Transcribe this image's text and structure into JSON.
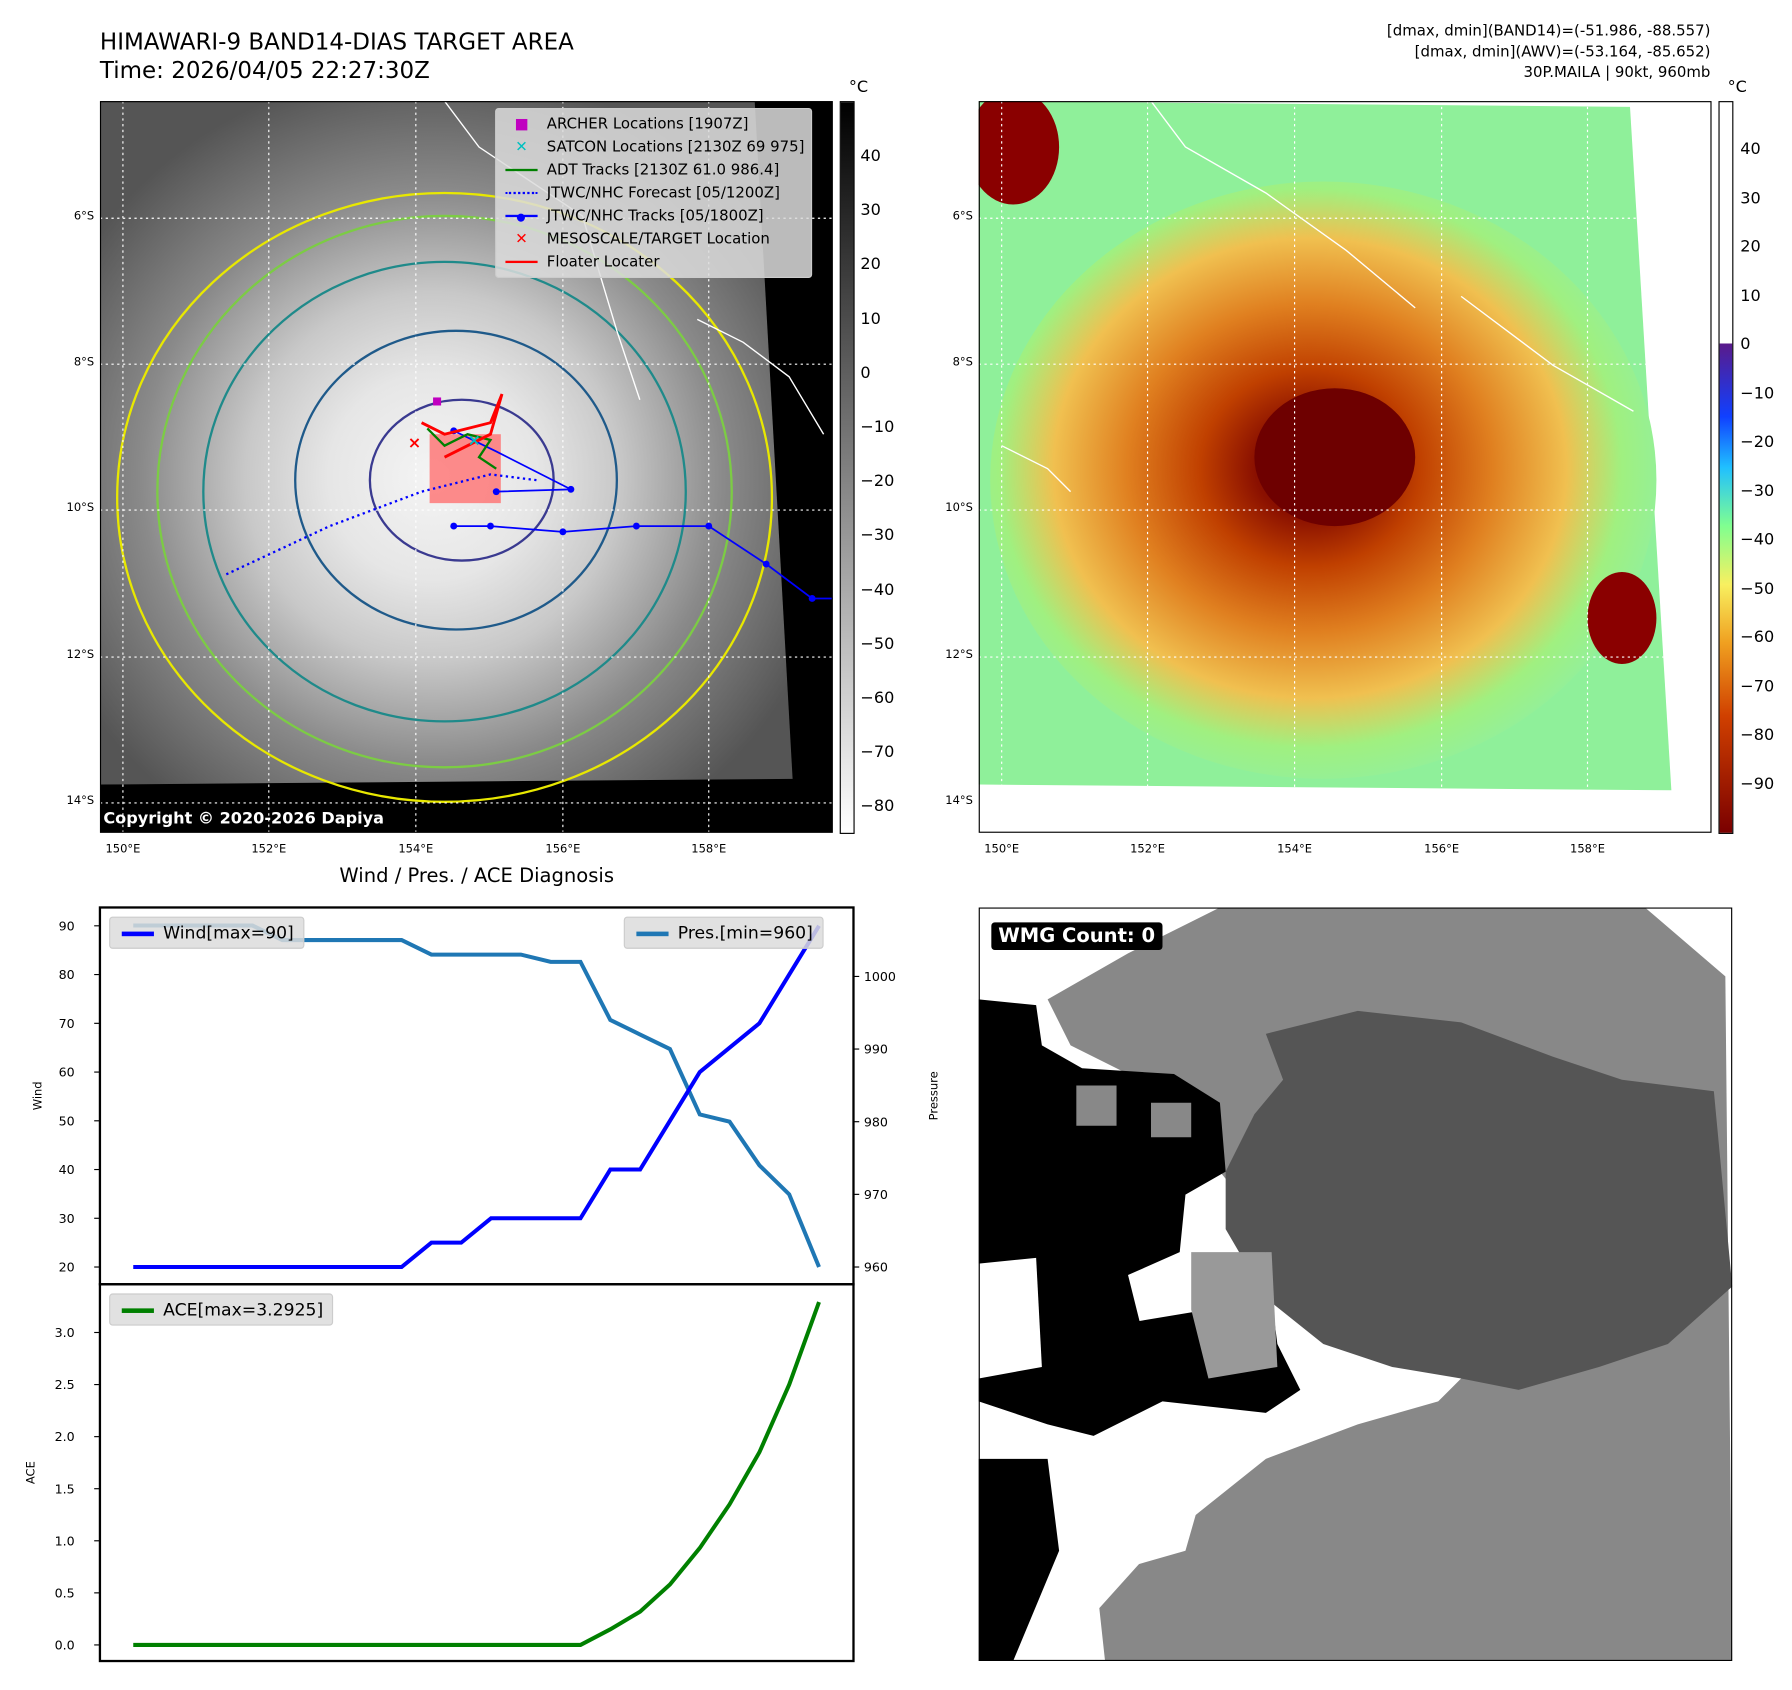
{
  "header": {
    "title": "HIMAWARI-9 BAND14-DIAS TARGET AREA",
    "time": "Time: 2026/04/05 22:27:30Z",
    "stats_band14": "[dmax, dmin](BAND14)=(-51.986, -88.557)",
    "stats_awv": "[dmax, dmin](AWV)=(-53.164, -85.652)",
    "storm_info": "30P.MAILA | 90kt, 960mb"
  },
  "map": {
    "lat_labels": [
      "6°S",
      "8°S",
      "10°S",
      "12°S",
      "14°S"
    ],
    "lon_labels": [
      "150°E",
      "152°E",
      "154°E",
      "156°E",
      "158°E"
    ],
    "copyright": "Copyright © 2020-2026 Dapiya",
    "unit": "°C",
    "left_colorbar_ticks": [
      "40",
      "30",
      "20",
      "10",
      "0",
      "−10",
      "−20",
      "−30",
      "−40",
      "−50",
      "−60",
      "−70",
      "−80"
    ],
    "right_colorbar_ticks": [
      "40",
      "30",
      "20",
      "10",
      "0",
      "−10",
      "−20",
      "−30",
      "−40",
      "−50",
      "−60",
      "−70",
      "−80",
      "−90"
    ],
    "legend": [
      {
        "label": "ARCHER Locations [1907Z]",
        "color": "#c000c0",
        "icon": "square-marker"
      },
      {
        "label": "SATCON Locations [2130Z 69 975]",
        "color": "#00c0c0",
        "icon": "x-marker"
      },
      {
        "label": "ADT Tracks [2130Z 61.0 986.4]",
        "color": "#008000",
        "icon": "solid-line"
      },
      {
        "label": "JTWC/NHC Forecast [05/1200Z]",
        "color": "#0000ff",
        "icon": "dotted-line"
      },
      {
        "label": "JTWC/NHC Tracks [05/1800Z]",
        "color": "#0000ff",
        "icon": "line-dot"
      },
      {
        "label": "MESOSCALE/TARGET Location",
        "color": "#ff0000",
        "icon": "x-marker"
      },
      {
        "label": "Floater Locater",
        "color": "#ff0000",
        "icon": "solid-line"
      }
    ]
  },
  "wmg": {
    "label": "WMG Count: 0"
  },
  "chart_data": [
    {
      "type": "line",
      "title": "Wind / Pres. / ACE Diagnosis",
      "ylabel": "Wind",
      "ylabel_right": "Pressure",
      "ylim": [
        18,
        93
      ],
      "ylim_right": [
        958,
        1008
      ],
      "yticks": [
        20,
        30,
        40,
        50,
        60,
        70,
        80,
        90
      ],
      "yticks_right": [
        960,
        970,
        980,
        990,
        1000
      ],
      "x": [
        0,
        1,
        2,
        3,
        4,
        5,
        6,
        7,
        8,
        9,
        10,
        11,
        12,
        13,
        14,
        15,
        16,
        17,
        18,
        19,
        20,
        21,
        22,
        23
      ],
      "series": [
        {
          "name": "Wind[max=90]",
          "color": "#0000ff",
          "axis": "left",
          "values": [
            20,
            20,
            20,
            20,
            20,
            20,
            20,
            20,
            20,
            20,
            25,
            25,
            30,
            30,
            30,
            30,
            40,
            40,
            50,
            60,
            65,
            70,
            80,
            90
          ]
        },
        {
          "name": "Pres.[min=960]",
          "color": "#1f77b4",
          "axis": "right",
          "values": [
            1007,
            1007,
            1007,
            1007,
            1007,
            1005,
            1005,
            1005,
            1005,
            1005,
            1003,
            1003,
            1003,
            1003,
            1002,
            1002,
            994,
            992,
            990,
            981,
            980,
            974,
            970,
            960
          ]
        }
      ]
    },
    {
      "type": "line",
      "ylabel": "ACE",
      "ylim": [
        -0.15,
        3.45
      ],
      "yticks": [
        "0.0",
        "0.5",
        "1.0",
        "1.5",
        "2.0",
        "2.5",
        "3.0"
      ],
      "x": [
        0,
        1,
        2,
        3,
        4,
        5,
        6,
        7,
        8,
        9,
        10,
        11,
        12,
        13,
        14,
        15,
        16,
        17,
        18,
        19,
        20,
        21,
        22,
        23
      ],
      "series": [
        {
          "name": "ACE[max=3.2925]",
          "color": "#008000",
          "values": [
            0,
            0,
            0,
            0,
            0,
            0,
            0,
            0,
            0,
            0,
            0,
            0,
            0,
            0,
            0,
            0,
            0.15,
            0.32,
            0.58,
            0.93,
            1.35,
            1.85,
            2.5,
            3.2925
          ]
        }
      ]
    }
  ]
}
